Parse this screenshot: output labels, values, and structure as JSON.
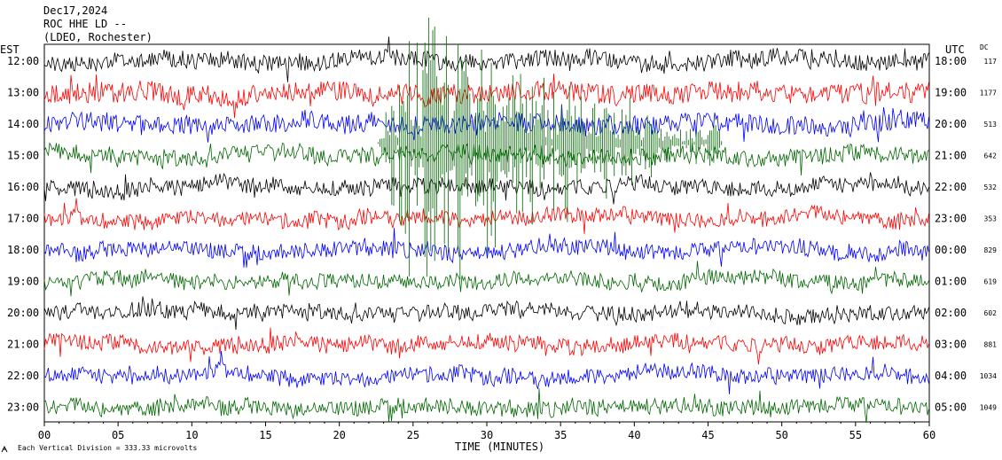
{
  "header": {
    "date": "Dec17,2024",
    "station": "ROC HHE LD --",
    "location": "(LDEO, Rochester)"
  },
  "left_axis_label": "EST",
  "right_axis_label": "UTC",
  "dc_label": "DC",
  "footer_note": "Each Vertical Division =  333.33 microvolts",
  "footer_icon": "plot-logo-icon",
  "chart_data": {
    "type": "line",
    "title": "Dec17,2024",
    "xlabel": "TIME (MINUTES)",
    "ylabel": "EST",
    "xlim": [
      0,
      60
    ],
    "x_ticks": [
      "00",
      "05",
      "10",
      "15",
      "20",
      "25",
      "30",
      "35",
      "40",
      "45",
      "50",
      "55",
      "60"
    ],
    "trace_colors": [
      "#000000",
      "#ff0000",
      "#0000ff",
      "#006600"
    ],
    "rows": [
      {
        "est": "12:00",
        "utc": "18:00",
        "dc": "117",
        "color": "#000000",
        "amplitude": 1.1
      },
      {
        "est": "13:00",
        "utc": "19:00",
        "dc": "1177",
        "color": "#ff0000",
        "amplitude": 1.3
      },
      {
        "est": "14:00",
        "utc": "20:00",
        "dc": "513",
        "color": "#0000ff",
        "amplitude": 1.2
      },
      {
        "est": "15:00",
        "utc": "21:00",
        "dc": "642",
        "color": "#006600",
        "amplitude": 1.1
      },
      {
        "est": "16:00",
        "utc": "22:00",
        "dc": "532",
        "color": "#000000",
        "amplitude": 1.0
      },
      {
        "est": "17:00",
        "utc": "23:00",
        "dc": "353",
        "color": "#ff0000",
        "amplitude": 1.0
      },
      {
        "est": "18:00",
        "utc": "00:00",
        "dc": "829",
        "color": "#0000ff",
        "amplitude": 1.0
      },
      {
        "est": "19:00",
        "utc": "01:00",
        "dc": "619",
        "color": "#006600",
        "amplitude": 1.0
      },
      {
        "est": "20:00",
        "utc": "02:00",
        "dc": "602",
        "color": "#000000",
        "amplitude": 1.0
      },
      {
        "est": "21:00",
        "utc": "03:00",
        "dc": "881",
        "color": "#ff0000",
        "amplitude": 1.0
      },
      {
        "est": "22:00",
        "utc": "04:00",
        "dc": "1034",
        "color": "#0000ff",
        "amplitude": 1.0
      },
      {
        "est": "23:00",
        "utc": "05:00",
        "dc": "1049",
        "color": "#006600",
        "amplitude": 1.0
      }
    ],
    "events": [
      {
        "label": "large transient",
        "row_start": "13:00",
        "x_start": 22.5,
        "x_end": 46,
        "color": "#006600"
      }
    ]
  }
}
